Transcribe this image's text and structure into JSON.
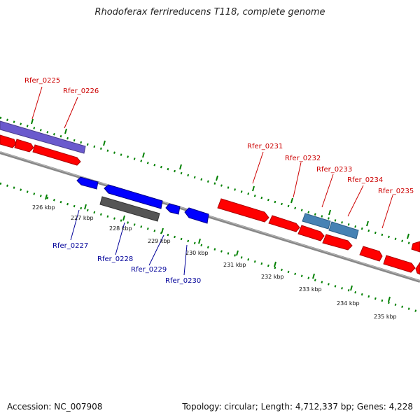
{
  "title": "Rhodoferax ferrireducens T118, complete genome",
  "footer": {
    "accession": "Accession: NC_007908",
    "topology": "Topology: circular; Length: 4,712,337 bp; Genes: 4,228"
  },
  "colors": {
    "forward_gene": "#ff0000",
    "reverse_gene": "#0000ff",
    "forward_label": "#cc0000",
    "reverse_label": "#000099",
    "rna_forward": "#4682b4",
    "rna_reverse": "#555555",
    "highlight_forward": "#6a5acd",
    "backbone": "#888888",
    "tick": "#008000"
  },
  "scale_labels": [
    "226 kbp",
    "227 kbp",
    "228 kbp",
    "229 kbp",
    "230 kbp",
    "231 kbp",
    "232 kbp",
    "233 kbp",
    "234 kbp",
    "235 kbp"
  ],
  "forward_labels": [
    "Rfer_0225",
    "Rfer_0226",
    "Rfer_0231",
    "Rfer_0232",
    "Rfer_0233",
    "Rfer_0234",
    "Rfer_0235"
  ],
  "reverse_labels": [
    "Rfer_0227",
    "Rfer_0228",
    "Rfer_0229",
    "Rfer_0230"
  ]
}
